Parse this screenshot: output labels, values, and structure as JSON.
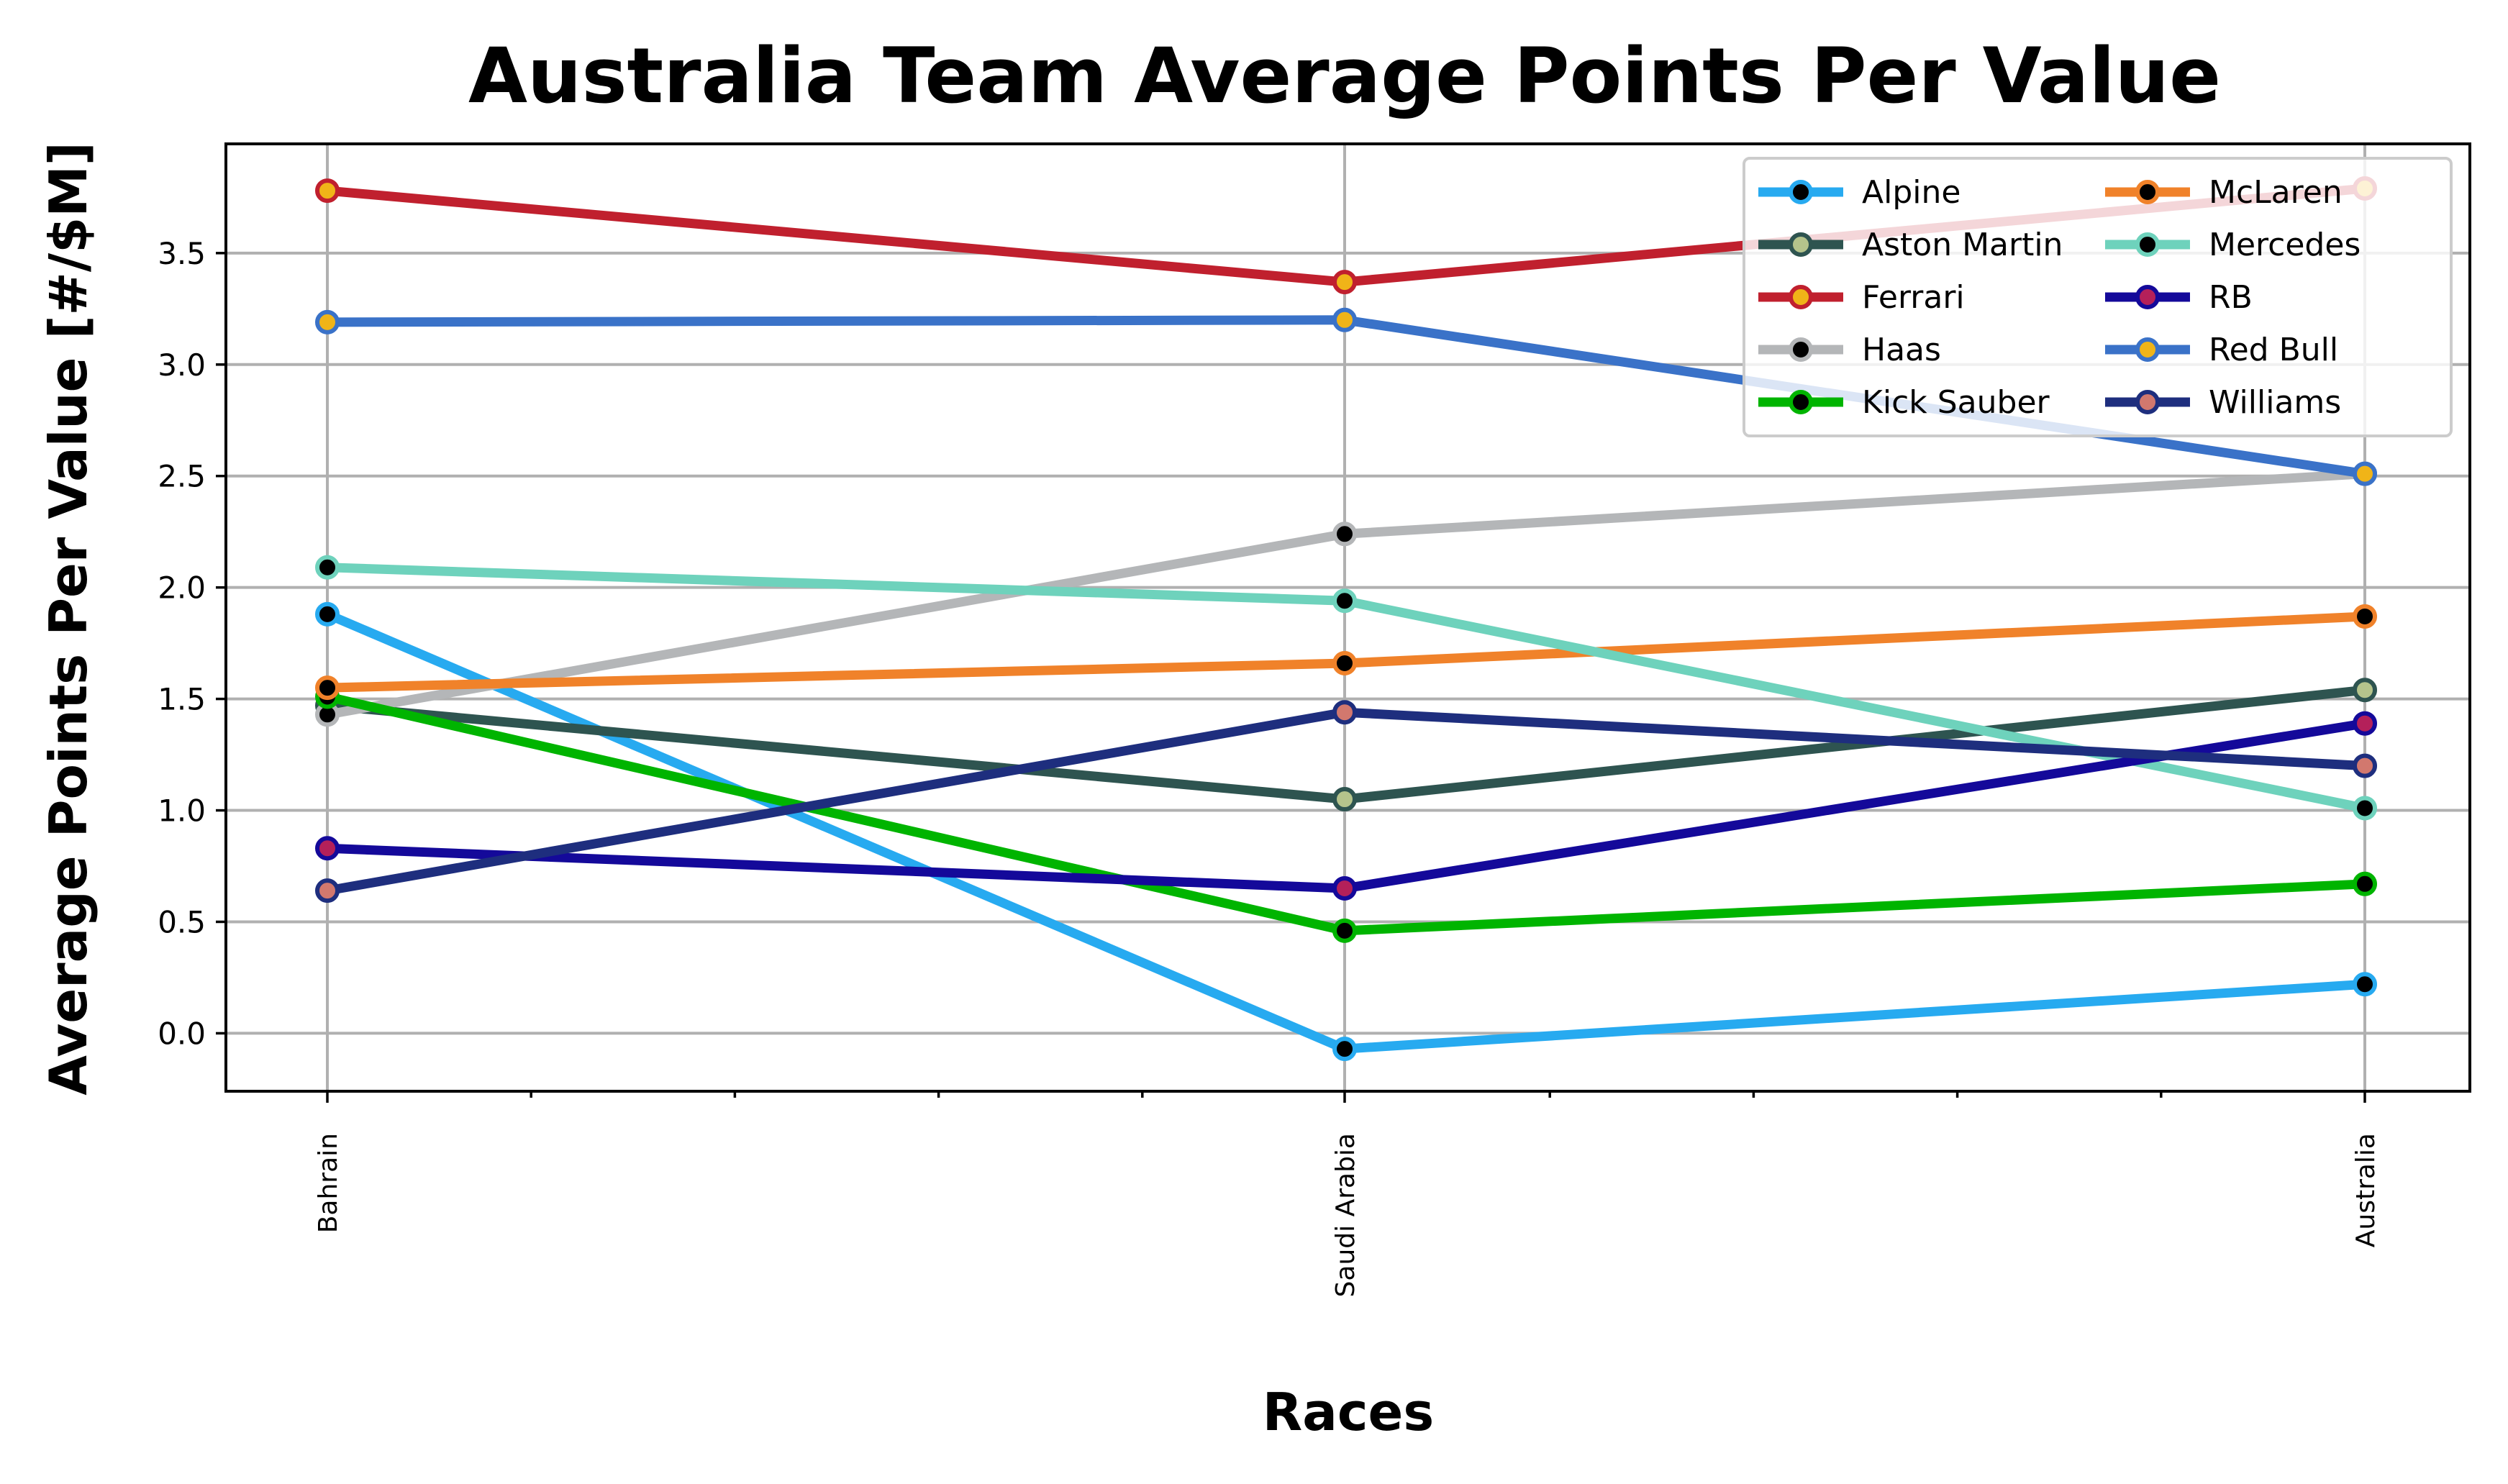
{
  "chart_data": {
    "type": "line",
    "title": "Australia Team Average Points Per Value",
    "xlabel": "Races",
    "ylabel": "Average Points Per Value [#/$M]",
    "categories": [
      "Bahrain",
      "Saudi Arabia",
      "Australia"
    ],
    "ylim": [
      -0.26,
      3.99
    ],
    "yticks": [
      0.0,
      0.5,
      1.0,
      1.5,
      2.0,
      2.5,
      3.0,
      3.5
    ],
    "ytick_labels": [
      "0.0",
      "0.5",
      "1.0",
      "1.5",
      "2.0",
      "2.5",
      "3.0",
      "3.5"
    ],
    "grid": true,
    "legend_position": "top-right",
    "series": [
      {
        "name": "Alpine",
        "values": [
          1.88,
          -0.07,
          0.22
        ],
        "color": "#27aaf0",
        "marker": "#000000"
      },
      {
        "name": "Aston Martin",
        "values": [
          1.47,
          1.05,
          1.54
        ],
        "color": "#2e5450",
        "marker": "#b5c48c"
      },
      {
        "name": "Ferrari",
        "values": [
          3.78,
          3.37,
          3.79
        ],
        "color": "#c0202e",
        "marker": "#f0b418"
      },
      {
        "name": "Haas",
        "values": [
          1.43,
          2.24,
          2.51
        ],
        "color": "#b4b6b8",
        "marker": "#000000"
      },
      {
        "name": "Kick Sauber",
        "values": [
          1.51,
          0.46,
          0.67
        ],
        "color": "#00b400",
        "marker": "#000000"
      },
      {
        "name": "McLaren",
        "values": [
          1.55,
          1.66,
          1.87
        ],
        "color": "#f0822a",
        "marker": "#000000"
      },
      {
        "name": "Mercedes",
        "values": [
          2.09,
          1.94,
          1.01
        ],
        "color": "#6ed2bc",
        "marker": "#000000"
      },
      {
        "name": "RB",
        "values": [
          0.83,
          0.65,
          1.39
        ],
        "color": "#14099a",
        "marker": "#b4205a"
      },
      {
        "name": "Red Bull",
        "values": [
          3.19,
          3.2,
          2.51
        ],
        "color": "#3a72c8",
        "marker": "#f0b418"
      },
      {
        "name": "Williams",
        "values": [
          0.64,
          1.44,
          1.2
        ],
        "color": "#1e2e7e",
        "marker": "#d2786e"
      }
    ]
  }
}
